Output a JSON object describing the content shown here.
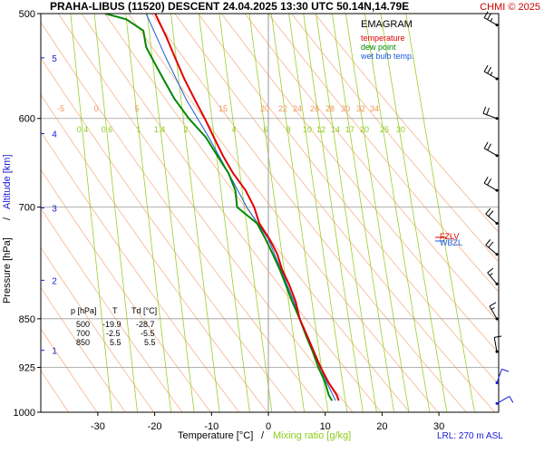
{
  "header": {
    "title": "PRAHA-LIBUS (11520)   DESCENT   24.04.2025 13:30 UTC  50.14N,14.79E",
    "copyright": "CHMI © 2025"
  },
  "legend": {
    "title": "EMAGRAM",
    "items": [
      {
        "label": "temperature",
        "color": "#e00000"
      },
      {
        "label": "dew point",
        "color": "#008800"
      },
      {
        "label": "wet bulb temp.",
        "color": "#1a5ad6"
      }
    ]
  },
  "axes": {
    "xlabel_temp": "Temperature [°C]",
    "xlabel_sep": "/",
    "xlabel_mix": "Mixing ratio [g/kg]",
    "ylabel_pressure": "Pressure [hPa]",
    "ylabel_sep": "/",
    "ylabel_alt": "Altitude [km]",
    "lrl": "LRL: 270 m ASL"
  },
  "side_labels": {
    "fzl": "FZLV",
    "wbzl": "WBZL"
  },
  "table": {
    "headers": [
      "p [hPa]",
      "T",
      "Td [°C]"
    ],
    "rows": [
      [
        "500",
        "-19.9",
        "-28.7"
      ],
      [
        "700",
        "-2.5",
        "-5.5"
      ],
      [
        "850",
        "5.5",
        "5.5"
      ]
    ]
  },
  "colors": {
    "temperature": "#e00000",
    "dewpoint": "#008800",
    "wetbulb": "#1a5ad6",
    "isotherm": "#9a9a9a",
    "dry_adiabat": "#f7b48a",
    "mixing_ratio": "#9ccf2a",
    "wind_barb": "#000000",
    "wind_barb_low": "#1a1ad6"
  },
  "chart_data": {
    "type": "line",
    "pressure_ticks": [
      500,
      600,
      700,
      850,
      925,
      1000
    ],
    "temperature_ticks": [
      -30,
      -20,
      -10,
      0,
      10,
      20,
      30
    ],
    "altitude_ticks_km": [
      1,
      2,
      3,
      4,
      5
    ],
    "xlim": [
      -40,
      40
    ],
    "ylim": [
      1000,
      500
    ],
    "y_scale": "log",
    "theta_labels": [
      "-5",
      "0",
      "5",
      "15",
      "20",
      "22",
      "24",
      "26",
      "28",
      "30",
      "32",
      "34"
    ],
    "mixing_ratio_labels": [
      "0.4",
      "0.6",
      "1",
      "1.4",
      "2",
      "4",
      "6",
      "8",
      "10",
      "12",
      "14",
      "17",
      "20",
      "25",
      "30"
    ],
    "series": [
      {
        "name": "temperature",
        "points": [
          {
            "p": 500,
            "t": -19.9
          },
          {
            "p": 520,
            "t": -18.0
          },
          {
            "p": 540,
            "t": -16.4
          },
          {
            "p": 560,
            "t": -14.8
          },
          {
            "p": 580,
            "t": -13.0
          },
          {
            "p": 600,
            "t": -11.2
          },
          {
            "p": 620,
            "t": -9.6
          },
          {
            "p": 640,
            "t": -8.0
          },
          {
            "p": 660,
            "t": -6.2
          },
          {
            "p": 680,
            "t": -4.0
          },
          {
            "p": 700,
            "t": -2.5
          },
          {
            "p": 720,
            "t": -1.6
          },
          {
            "p": 740,
            "t": 0.2
          },
          {
            "p": 760,
            "t": 1.6
          },
          {
            "p": 780,
            "t": 2.4
          },
          {
            "p": 800,
            "t": 3.6
          },
          {
            "p": 825,
            "t": 4.8
          },
          {
            "p": 850,
            "t": 5.5
          },
          {
            "p": 875,
            "t": 6.8
          },
          {
            "p": 900,
            "t": 8.0
          },
          {
            "p": 925,
            "t": 9.2
          },
          {
            "p": 950,
            "t": 10.6
          },
          {
            "p": 970,
            "t": 12.0
          },
          {
            "p": 980,
            "t": 12.4
          }
        ]
      },
      {
        "name": "dew point",
        "points": [
          {
            "p": 500,
            "t": -28.7
          },
          {
            "p": 505,
            "t": -25.0
          },
          {
            "p": 515,
            "t": -22.0
          },
          {
            "p": 530,
            "t": -21.5
          },
          {
            "p": 545,
            "t": -20.0
          },
          {
            "p": 560,
            "t": -18.5
          },
          {
            "p": 580,
            "t": -16.5
          },
          {
            "p": 600,
            "t": -14.0
          },
          {
            "p": 620,
            "t": -11.0
          },
          {
            "p": 640,
            "t": -9.0
          },
          {
            "p": 660,
            "t": -7.0
          },
          {
            "p": 680,
            "t": -5.8
          },
          {
            "p": 700,
            "t": -5.5
          },
          {
            "p": 720,
            "t": -2.0
          },
          {
            "p": 740,
            "t": -0.5
          },
          {
            "p": 760,
            "t": 0.8
          },
          {
            "p": 780,
            "t": 2.0
          },
          {
            "p": 800,
            "t": 3.0
          },
          {
            "p": 825,
            "t": 4.2
          },
          {
            "p": 850,
            "t": 5.5
          },
          {
            "p": 875,
            "t": 6.6
          },
          {
            "p": 900,
            "t": 7.8
          },
          {
            "p": 925,
            "t": 8.8
          },
          {
            "p": 950,
            "t": 10.0
          },
          {
            "p": 970,
            "t": 10.6
          },
          {
            "p": 980,
            "t": 11.2
          }
        ]
      },
      {
        "name": "wet bulb temp.",
        "points": [
          {
            "p": 500,
            "t": -21.5
          },
          {
            "p": 540,
            "t": -18.0
          },
          {
            "p": 580,
            "t": -14.5
          },
          {
            "p": 620,
            "t": -10.5
          },
          {
            "p": 660,
            "t": -7.0
          },
          {
            "p": 700,
            "t": -3.8
          },
          {
            "p": 740,
            "t": 0.0
          },
          {
            "p": 780,
            "t": 2.2
          },
          {
            "p": 825,
            "t": 4.5
          },
          {
            "p": 850,
            "t": 5.5
          },
          {
            "p": 900,
            "t": 7.9
          },
          {
            "p": 950,
            "t": 10.3
          },
          {
            "p": 980,
            "t": 11.8
          }
        ]
      }
    ],
    "wind_barbs": [
      {
        "p": 510,
        "dir": 300,
        "speed_kt": 25
      },
      {
        "p": 560,
        "dir": 300,
        "speed_kt": 25
      },
      {
        "p": 600,
        "dir": 290,
        "speed_kt": 20
      },
      {
        "p": 640,
        "dir": 300,
        "speed_kt": 20
      },
      {
        "p": 680,
        "dir": 300,
        "speed_kt": 20
      },
      {
        "p": 720,
        "dir": 310,
        "speed_kt": 20
      },
      {
        "p": 760,
        "dir": 310,
        "speed_kt": 20
      },
      {
        "p": 800,
        "dir": 320,
        "speed_kt": 15
      },
      {
        "p": 850,
        "dir": 330,
        "speed_kt": 15
      },
      {
        "p": 900,
        "dir": 350,
        "speed_kt": 10
      },
      {
        "p": 950,
        "dir": 20,
        "speed_kt": 10
      },
      {
        "p": 985,
        "dir": 60,
        "speed_kt": 10
      }
    ]
  }
}
